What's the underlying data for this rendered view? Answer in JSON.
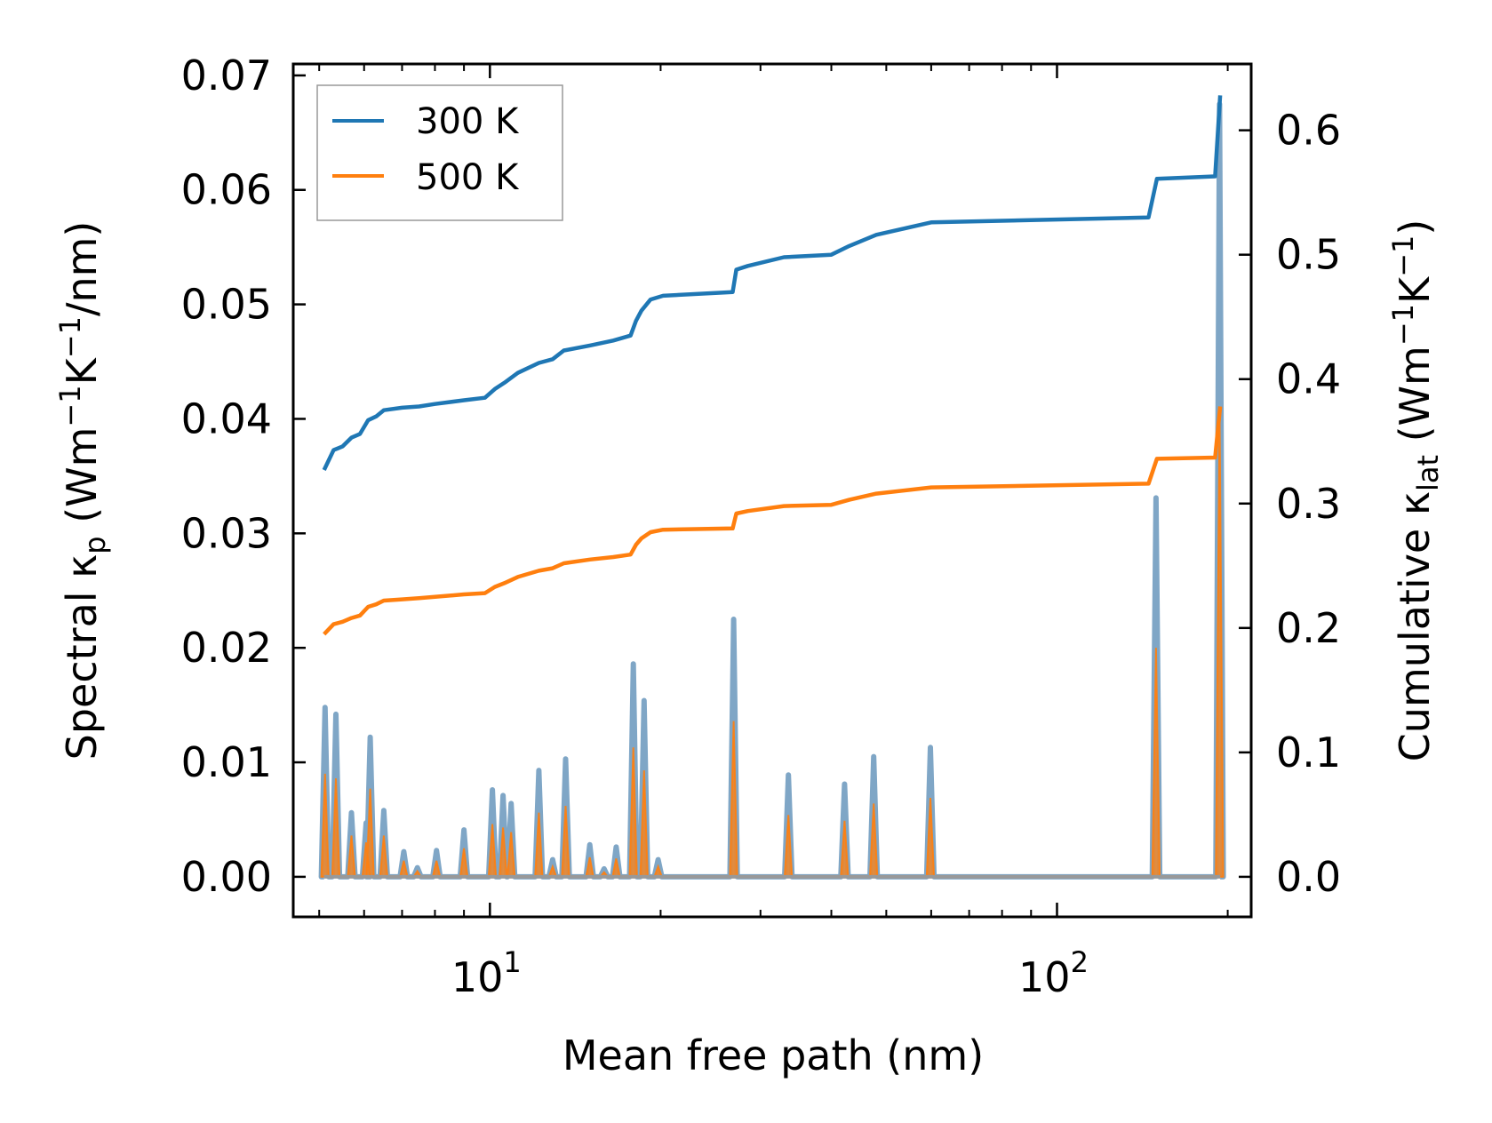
{
  "chart_data": {
    "type": "line",
    "xscale": "log",
    "xlabel": "Mean free path (nm)",
    "xlim": [
      4.5,
      220
    ],
    "xticks": [
      {
        "value": 10,
        "base": "10",
        "exp": "1"
      },
      {
        "value": 100,
        "base": "10",
        "exp": "2"
      }
    ],
    "ylabel_left": {
      "pre": "Spectral κ",
      "sub": "p",
      "mid": " (Wm",
      "sup1": "−1",
      "k": "K",
      "sup2": "−1",
      "post": "/nm)"
    },
    "ylim_left": [
      -0.0035,
      0.071
    ],
    "yticks_left": [
      "0.00",
      "0.01",
      "0.02",
      "0.03",
      "0.04",
      "0.05",
      "0.06",
      "0.07"
    ],
    "ylabel_right": {
      "pre": "Cumulative κ",
      "sub": "lat",
      "mid": " (Wm",
      "sup1": "−1",
      "k": "K",
      "sup2": "−1",
      "post": ")"
    },
    "ylim_right": [
      -0.0322,
      0.6533
    ],
    "yticks_right": [
      "0.0",
      "0.1",
      "0.2",
      "0.3",
      "0.4",
      "0.5",
      "0.6"
    ],
    "legend": {
      "position": "top-left",
      "entries": [
        "300 K",
        "500 K"
      ]
    },
    "colors": {
      "300K": "#1f77b4",
      "500K": "#ff7f0e",
      "spectral_fill": "#7fa6c6"
    },
    "series": [
      {
        "name": "300 K",
        "axis": "right",
        "cumulative": [
          [
            5.1,
            0.327
          ],
          [
            5.3,
            0.343
          ],
          [
            5.5,
            0.346
          ],
          [
            5.7,
            0.353
          ],
          [
            5.9,
            0.356
          ],
          [
            6.1,
            0.367
          ],
          [
            6.3,
            0.37
          ],
          [
            6.5,
            0.375
          ],
          [
            7.0,
            0.377
          ],
          [
            7.5,
            0.378
          ],
          [
            8.0,
            0.38
          ],
          [
            9.0,
            0.383
          ],
          [
            9.8,
            0.385
          ],
          [
            10.2,
            0.392
          ],
          [
            10.6,
            0.397
          ],
          [
            11.2,
            0.405
          ],
          [
            12.2,
            0.413
          ],
          [
            12.9,
            0.416
          ],
          [
            13.5,
            0.423
          ],
          [
            15.0,
            0.427
          ],
          [
            16.5,
            0.431
          ],
          [
            17.7,
            0.435
          ],
          [
            18.1,
            0.447
          ],
          [
            18.5,
            0.455
          ],
          [
            19.2,
            0.464
          ],
          [
            20.2,
            0.467
          ],
          [
            26.8,
            0.47
          ],
          [
            27.2,
            0.488
          ],
          [
            28.5,
            0.491
          ],
          [
            33.0,
            0.498
          ],
          [
            40.0,
            0.5
          ],
          [
            43.0,
            0.507
          ],
          [
            48.0,
            0.516
          ],
          [
            60.0,
            0.526
          ],
          [
            145.0,
            0.53
          ],
          [
            150.0,
            0.561
          ],
          [
            190.0,
            0.563
          ],
          [
            194.0,
            0.628
          ]
        ]
      },
      {
        "name": "500 K",
        "axis": "right",
        "cumulative": [
          [
            5.1,
            0.195
          ],
          [
            5.3,
            0.203
          ],
          [
            5.5,
            0.205
          ],
          [
            5.7,
            0.208
          ],
          [
            5.9,
            0.21
          ],
          [
            6.1,
            0.217
          ],
          [
            6.3,
            0.219
          ],
          [
            6.5,
            0.222
          ],
          [
            7.0,
            0.223
          ],
          [
            7.5,
            0.224
          ],
          [
            8.0,
            0.225
          ],
          [
            9.0,
            0.227
          ],
          [
            9.8,
            0.228
          ],
          [
            10.2,
            0.233
          ],
          [
            10.6,
            0.236
          ],
          [
            11.2,
            0.241
          ],
          [
            12.2,
            0.246
          ],
          [
            12.9,
            0.248
          ],
          [
            13.5,
            0.252
          ],
          [
            15.0,
            0.255
          ],
          [
            16.5,
            0.257
          ],
          [
            17.7,
            0.259
          ],
          [
            18.1,
            0.267
          ],
          [
            18.5,
            0.272
          ],
          [
            19.2,
            0.277
          ],
          [
            20.2,
            0.279
          ],
          [
            26.8,
            0.28
          ],
          [
            27.2,
            0.292
          ],
          [
            28.5,
            0.294
          ],
          [
            33.0,
            0.298
          ],
          [
            40.0,
            0.299
          ],
          [
            43.0,
            0.303
          ],
          [
            48.0,
            0.308
          ],
          [
            60.0,
            0.313
          ],
          [
            145.0,
            0.316
          ],
          [
            150.0,
            0.336
          ],
          [
            190.0,
            0.337
          ],
          [
            194.0,
            0.378
          ]
        ]
      }
    ],
    "spectral": {
      "axis": "left",
      "peaks_300K": [
        [
          5.12,
          0.0148
        ],
        [
          5.35,
          0.0142
        ],
        [
          5.7,
          0.0056
        ],
        [
          6.05,
          0.0047
        ],
        [
          6.15,
          0.0122
        ],
        [
          6.5,
          0.0058
        ],
        [
          7.05,
          0.0022
        ],
        [
          7.45,
          0.0008
        ],
        [
          8.05,
          0.0023
        ],
        [
          9.0,
          0.0041
        ],
        [
          10.1,
          0.0076
        ],
        [
          10.55,
          0.0071
        ],
        [
          10.9,
          0.0064
        ],
        [
          12.2,
          0.0093
        ],
        [
          12.9,
          0.0015
        ],
        [
          13.6,
          0.0103
        ],
        [
          15.0,
          0.0028
        ],
        [
          15.9,
          0.0007
        ],
        [
          16.7,
          0.0026
        ],
        [
          17.9,
          0.0186
        ],
        [
          18.7,
          0.0154
        ],
        [
          19.8,
          0.0015
        ],
        [
          26.9,
          0.0225
        ],
        [
          33.6,
          0.0089
        ],
        [
          42.2,
          0.0081
        ],
        [
          47.5,
          0.0105
        ],
        [
          59.8,
          0.0113
        ],
        [
          149.5,
          0.0331
        ],
        [
          193.5,
          0.0675
        ]
      ],
      "peaks_500K": [
        [
          5.12,
          0.009
        ],
        [
          5.35,
          0.0086
        ],
        [
          5.7,
          0.0036
        ],
        [
          6.05,
          0.003
        ],
        [
          6.15,
          0.0077
        ],
        [
          6.5,
          0.0036
        ],
        [
          7.05,
          0.0014
        ],
        [
          7.45,
          0.0005
        ],
        [
          8.05,
          0.0014
        ],
        [
          9.0,
          0.0025
        ],
        [
          10.1,
          0.0046
        ],
        [
          10.55,
          0.0043
        ],
        [
          10.9,
          0.0039
        ],
        [
          12.2,
          0.0056
        ],
        [
          12.9,
          0.0009
        ],
        [
          13.6,
          0.0062
        ],
        [
          15.0,
          0.0017
        ],
        [
          15.9,
          0.0004
        ],
        [
          16.7,
          0.0016
        ],
        [
          17.9,
          0.0113
        ],
        [
          18.7,
          0.0093
        ],
        [
          19.8,
          0.0009
        ],
        [
          26.9,
          0.0136
        ],
        [
          33.6,
          0.0054
        ],
        [
          42.2,
          0.0049
        ],
        [
          47.5,
          0.0064
        ],
        [
          59.8,
          0.0069
        ],
        [
          149.5,
          0.02
        ],
        [
          193.5,
          0.041
        ]
      ]
    }
  }
}
